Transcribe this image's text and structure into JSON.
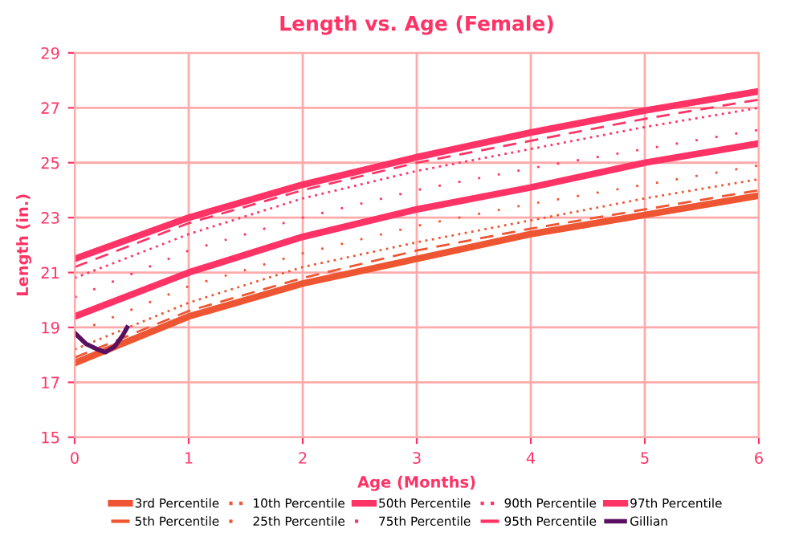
{
  "chart_data": {
    "type": "line",
    "title": "Length vs. Age (Female)",
    "xlabel": "Age (Months)",
    "ylabel": "Length (in.)",
    "x": [
      0,
      1,
      2,
      3,
      4,
      5,
      6
    ],
    "series": [
      {
        "name": "3rd Percentile",
        "color": "#ee5533",
        "line_style": "solid",
        "values": [
          17.7,
          19.4,
          20.6,
          21.5,
          22.4,
          23.1,
          23.8
        ]
      },
      {
        "name": "5th Percentile",
        "color": "#ee5533",
        "line_style": "dashed",
        "values": [
          17.9,
          19.6,
          20.8,
          21.8,
          22.6,
          23.3,
          24.0
        ]
      },
      {
        "name": "10th Percentile",
        "color": "#ee5533",
        "line_style": "dotted",
        "values": [
          18.2,
          19.9,
          21.2,
          22.1,
          22.9,
          23.7,
          24.4
        ]
      },
      {
        "name": "25th Percentile",
        "color": "#ee5533",
        "line_style": "dotted",
        "values": [
          18.8,
          20.5,
          21.7,
          22.7,
          23.5,
          24.2,
          24.9
        ]
      },
      {
        "name": "50th Percentile",
        "color": "#ff3366",
        "line_style": "solid",
        "values": [
          19.4,
          21.0,
          22.3,
          23.3,
          24.1,
          25.0,
          25.7
        ]
      },
      {
        "name": "75th Percentile",
        "color": "#ff3366",
        "line_style": "dotted",
        "values": [
          20.1,
          21.8,
          23.0,
          24.0,
          24.8,
          25.5,
          26.2
        ]
      },
      {
        "name": "90th Percentile",
        "color": "#ff3366",
        "line_style": "dotted",
        "values": [
          20.8,
          22.4,
          23.7,
          24.7,
          25.5,
          26.3,
          27.0
        ]
      },
      {
        "name": "95th Percentile",
        "color": "#ff3366",
        "line_style": "dashed",
        "values": [
          21.2,
          22.8,
          24.0,
          25.0,
          25.8,
          26.6,
          27.3
        ]
      },
      {
        "name": "97th Percentile",
        "color": "#ff3366",
        "line_style": "solid",
        "values": [
          21.5,
          23.0,
          24.2,
          25.2,
          26.1,
          26.9,
          27.6
        ]
      },
      {
        "name": "Gillian",
        "color": "#5a1060",
        "line_style": "solid",
        "x": [
          0,
          0.1,
          0.2,
          0.27,
          0.35,
          0.42,
          0.46
        ],
        "values": [
          18.8,
          18.4,
          18.2,
          18.1,
          18.3,
          18.7,
          19.0
        ]
      }
    ],
    "xlim": [
      0,
      6
    ],
    "xticks": [
      0,
      1,
      2,
      3,
      4,
      5,
      6
    ],
    "ylim": [
      15,
      29
    ],
    "yticks": [
      15,
      17,
      19,
      21,
      23,
      25,
      27,
      29
    ],
    "grid": true,
    "legend": "bottom"
  }
}
